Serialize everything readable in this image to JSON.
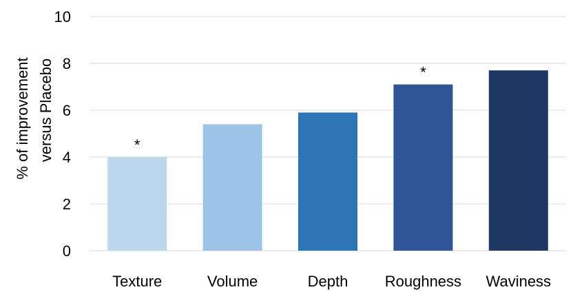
{
  "chart_data": {
    "type": "bar",
    "categories": [
      "Texture",
      "Volume",
      "Depth",
      "Roughness",
      "Waviness"
    ],
    "values": [
      4.0,
      5.4,
      5.9,
      7.1,
      7.7
    ],
    "annotations": [
      "*",
      "",
      "",
      "*",
      ""
    ],
    "colors": [
      "#bdd7ee",
      "#9dc3e6",
      "#2e75b6",
      "#2f5597",
      "#203864"
    ],
    "ylabel_lines": [
      "% of improvement",
      "versus Placebo"
    ],
    "ylim": [
      0,
      10
    ],
    "yticks": [
      0,
      2,
      4,
      6,
      8,
      10
    ],
    "grid": true,
    "legend": "none"
  }
}
